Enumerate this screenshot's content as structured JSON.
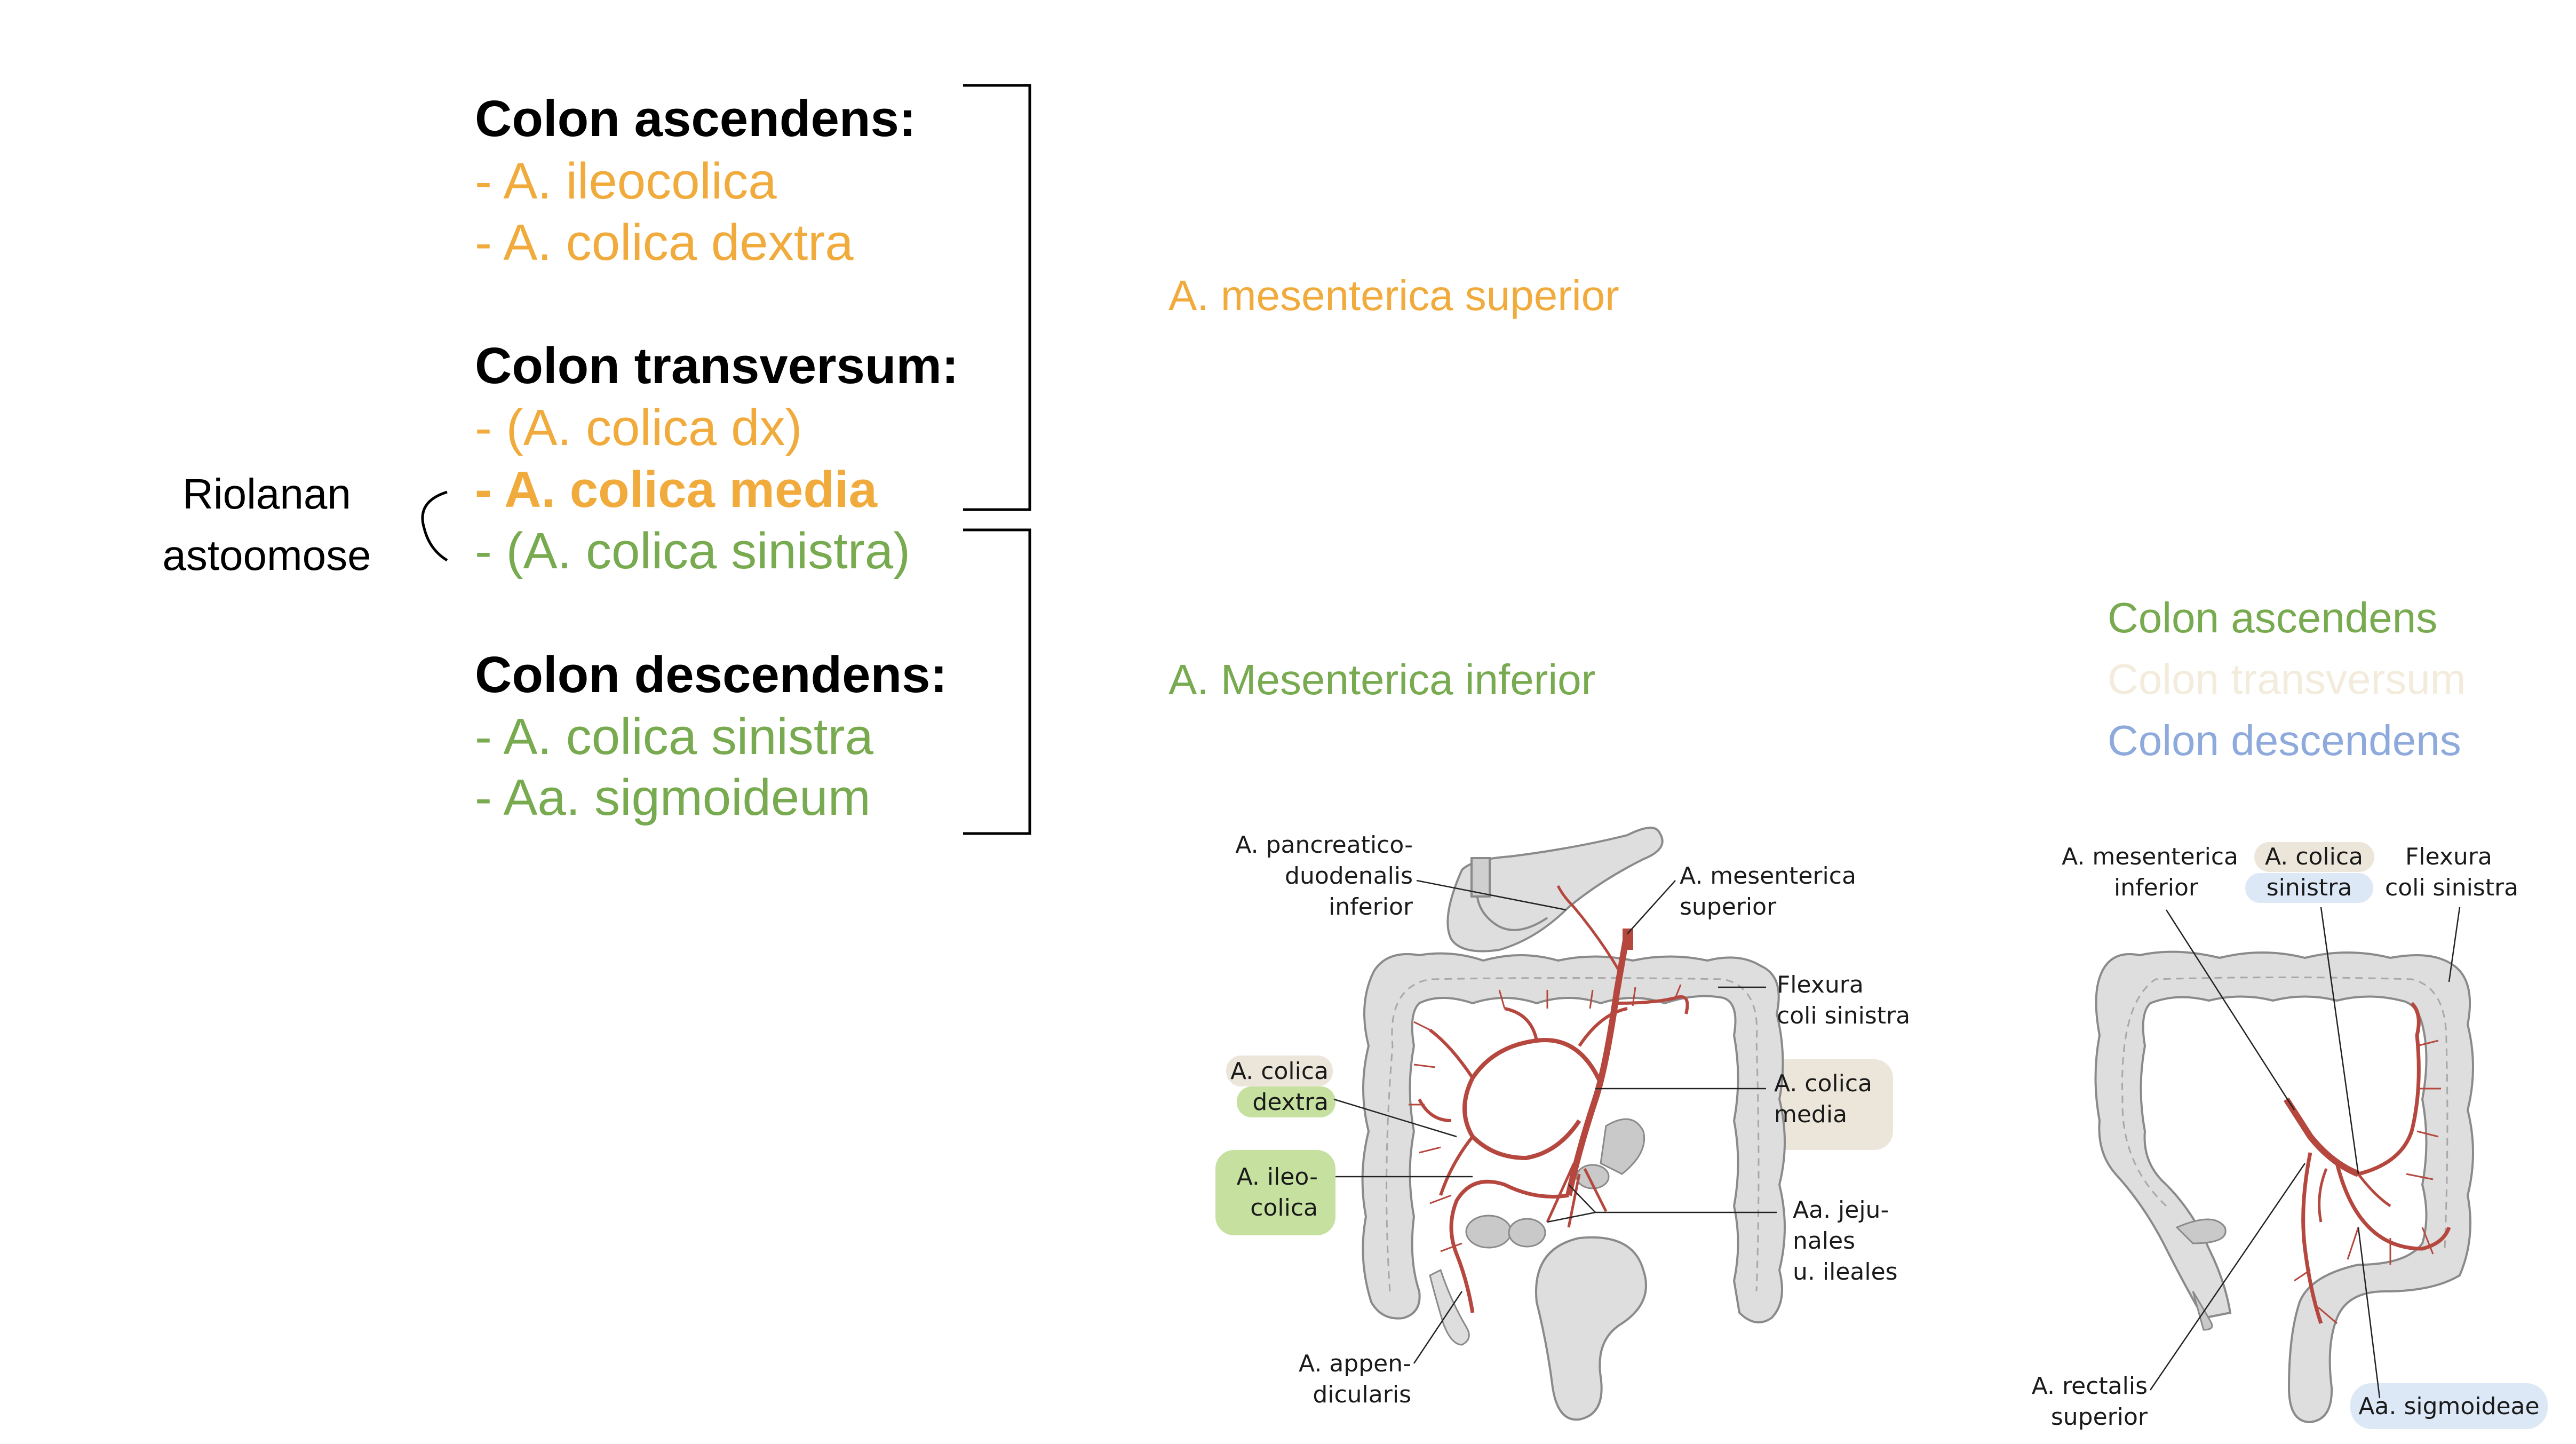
{
  "lists": {
    "asc_head": "Colon ascendens:",
    "asc_1": "- A. ileocolica",
    "asc_2": "- A. colica dextra",
    "trans_head": "Colon transversum:",
    "trans_1": "- (A. colica dx)",
    "trans_2": "- A. colica media",
    "trans_3": "- (A. colica sinistra)",
    "desc_head": "Colon descendens:",
    "desc_1": "- A. colica sinistra",
    "desc_2": "- Aa. sigmoideum"
  },
  "riolan": {
    "line1": "Riolanan",
    "line2": "astoomose"
  },
  "arteries": {
    "superior": "A. mesenterica superior",
    "inferior": "A. Mesenterica inferior"
  },
  "legend": {
    "ascendens": "Colon ascendens",
    "transversum": "Colon transversum",
    "descendens": "Colon descendens"
  },
  "figure_left": {
    "pancreatico_1": "A. pancreatico-",
    "pancreatico_2": "duodenalis",
    "pancreatico_3": "inferior",
    "mes_sup_1": "A. mesenterica",
    "mes_sup_2": "superior",
    "flexura_1": "Flexura",
    "flexura_2": "coli sinistra",
    "colica_dextra_1": "A. colica",
    "colica_dextra_2": "dextra",
    "colica_media_1": "A. colica",
    "colica_media_2": "media",
    "ileocolica_1": "A. ileo-",
    "ileocolica_2": "colica",
    "jejunales_1": "Aa. jeju-",
    "jejunales_2": "nales",
    "jejunales_3": "u. ileales",
    "appendicularis_1": "A. appen-",
    "appendicularis_2": "dicularis"
  },
  "figure_right": {
    "mes_inf_1": "A. mesenterica",
    "mes_inf_2": "inferior",
    "colica_sinistra_1": "A. colica",
    "colica_sinistra_2": "sinistra",
    "flexura_1": "Flexura",
    "flexura_2": "coli sinistra",
    "rectalis_1": "A. rectalis",
    "rectalis_2": "superior",
    "sigmoideae": "Aa. sigmoideae"
  },
  "colors": {
    "superior": "#f0ab3c",
    "inferior": "#78aa50",
    "legend_transversum": "#f3ecdc",
    "legend_descendens": "#8eaadc",
    "artery": "#b5473e",
    "colon_fill": "#dedede",
    "colon_stroke": "#8a8a8a",
    "tag_green": "#c6e0a0",
    "tag_beige": "#ece6da",
    "tag_blue": "#dce8f6"
  }
}
